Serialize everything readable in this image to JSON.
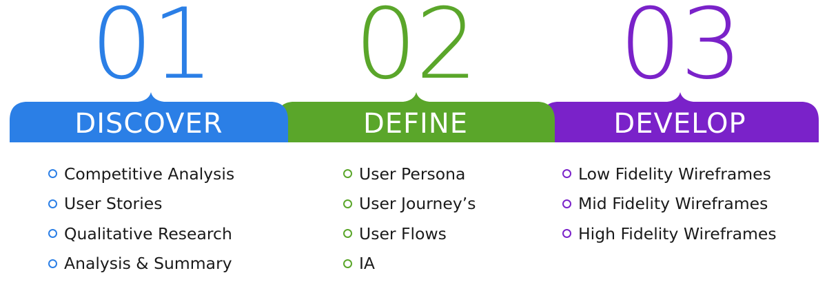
{
  "colors": {
    "discover": "#2b7fe6",
    "define": "#5aa62a",
    "develop": "#7a22c9"
  },
  "phases": [
    {
      "number": "01",
      "label": "DISCOVER",
      "items": [
        "Competitive Analysis",
        "User Stories",
        "Qualitative Research",
        "Analysis & Summary"
      ]
    },
    {
      "number": "02",
      "label": "DEFINE",
      "items": [
        "User Persona",
        "User Journey’s",
        "User Flows",
        "IA"
      ]
    },
    {
      "number": "03",
      "label": "DEVELOP",
      "items": [
        "Low Fidelity Wireframes",
        "Mid Fidelity Wireframes",
        "High Fidelity Wireframes"
      ]
    }
  ]
}
